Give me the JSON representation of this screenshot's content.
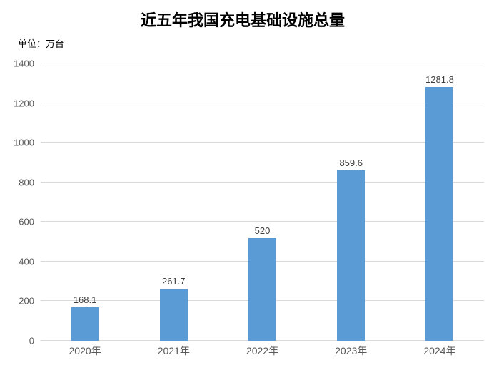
{
  "unit_label": "单位：万台",
  "chart_data": {
    "type": "bar",
    "title": "近五年我国充电基础设施总量",
    "categories": [
      "2020年",
      "2021年",
      "2022年",
      "2023年",
      "2024年"
    ],
    "values": [
      168.1,
      261.7,
      520,
      859.6,
      1281.8
    ],
    "data_labels": [
      "168.1",
      "261.7",
      "520",
      "859.6",
      "1281.8"
    ],
    "xlabel": "",
    "ylabel": "单位：万台",
    "ylim": [
      0,
      1400
    ],
    "yticks": [
      0,
      200,
      400,
      600,
      800,
      1000,
      1200,
      1400
    ],
    "grid": true,
    "legend_position": "none",
    "colors": {
      "bar": "#5B9BD5",
      "gridline": "#D9D9D9",
      "axis_label": "#595959",
      "data_label": "#404040",
      "title": "#000000",
      "background": "#FFFFFF"
    }
  }
}
